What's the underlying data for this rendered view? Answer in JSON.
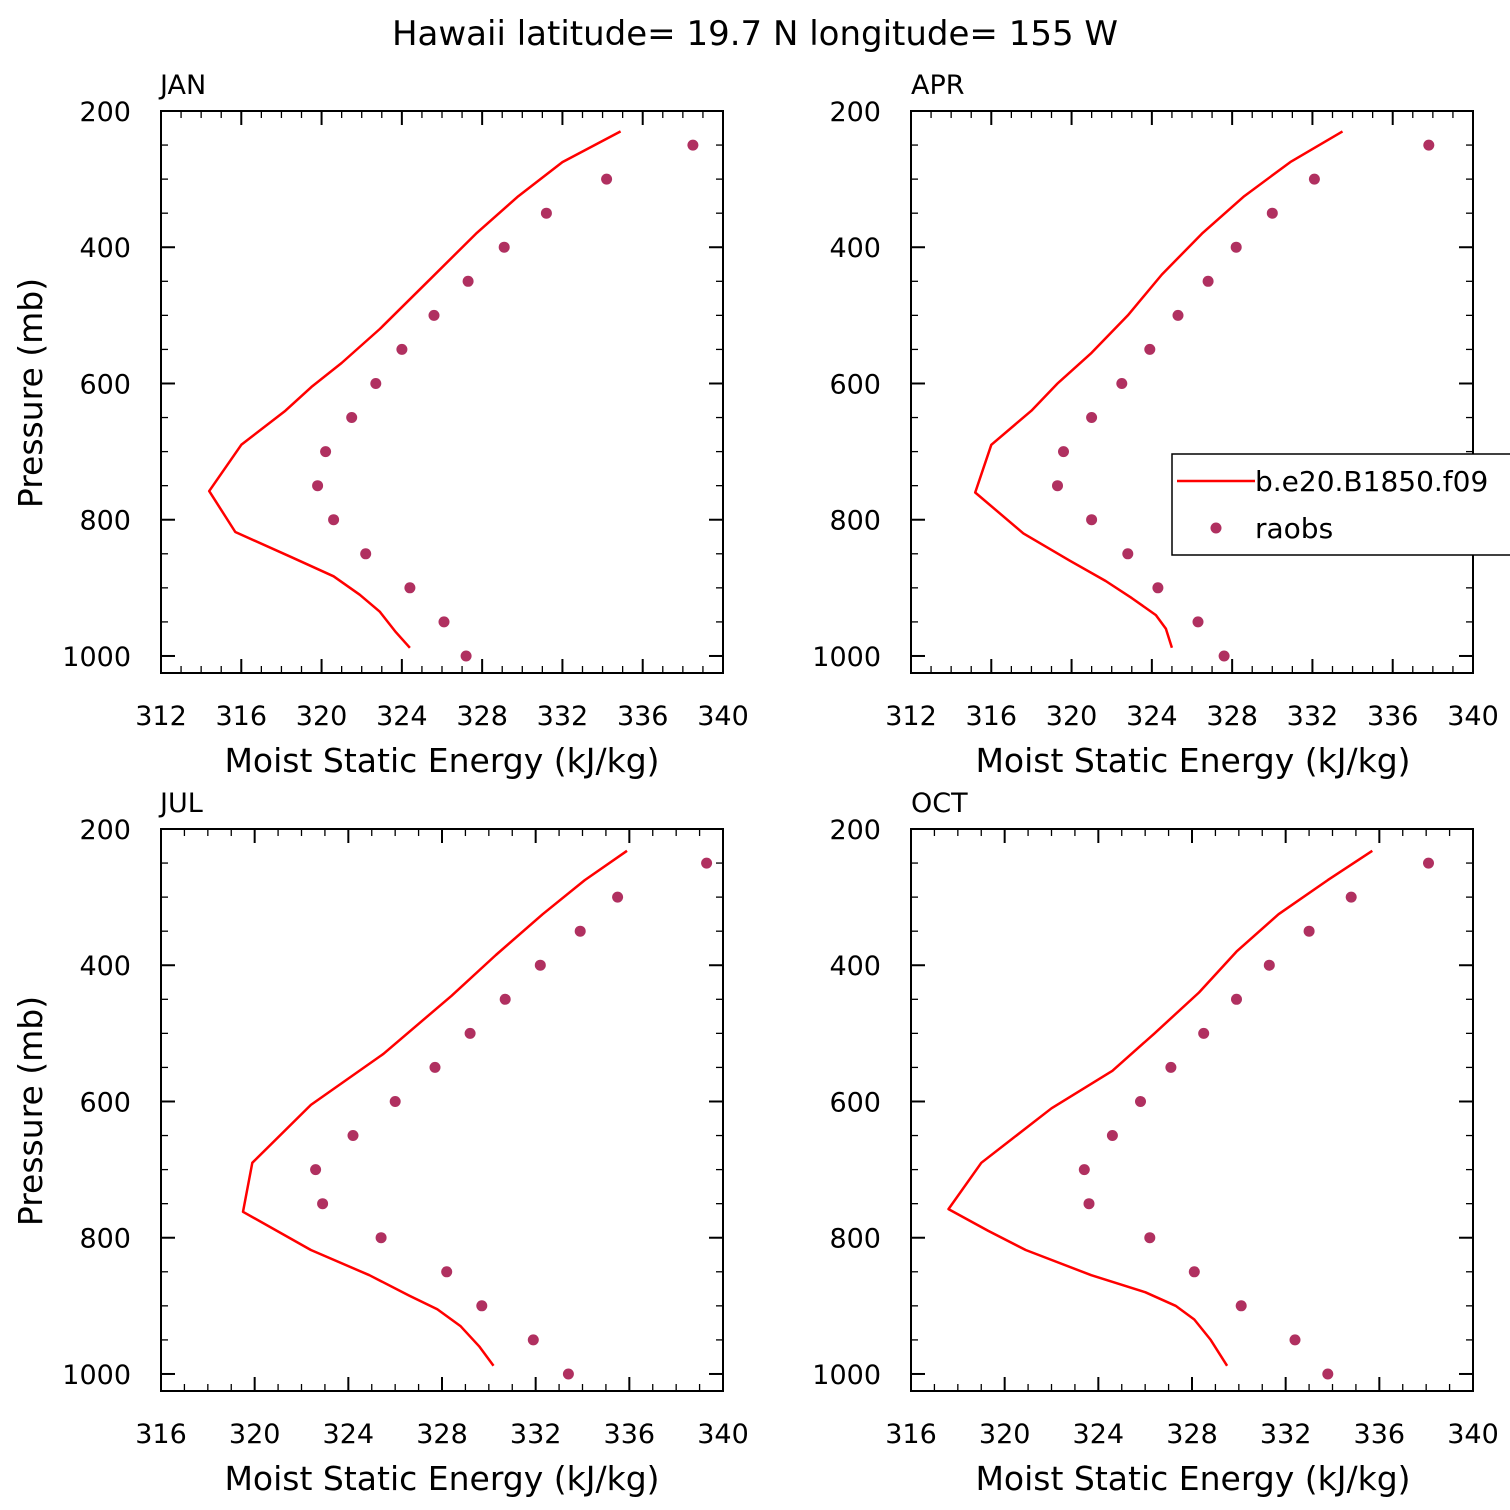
{
  "figure": {
    "title": "Hawaii  latitude= 19.7 N longitude= 155 W"
  },
  "colors": {
    "model_line": "#ff0000",
    "obs_marker": "#b03060",
    "axes": "#000000",
    "background": "#ffffff"
  },
  "legend": {
    "placement": "right of APR panel",
    "entries": [
      {
        "label": "b.e20.B1850.f09",
        "kind": "line"
      },
      {
        "label": "raobs",
        "kind": "marker"
      }
    ]
  },
  "chart_data": [
    {
      "type": "line",
      "panel": "JAN",
      "title": "JAN",
      "xlabel": "Moist Static Energy (kJ/kg)",
      "ylabel": "Pressure (mb)",
      "xlim": [
        312,
        340
      ],
      "ylim": [
        1025,
        200
      ],
      "y_inverted": true,
      "x_ticks": [
        312,
        316,
        320,
        324,
        328,
        332,
        336,
        340
      ],
      "y_ticks": [
        200,
        400,
        600,
        800,
        1000
      ],
      "series": [
        {
          "name": "b.e20.B1850.f09",
          "style": "line",
          "x": [
            334.9,
            332.0,
            329.8,
            327.7,
            325.3,
            322.9,
            321.0,
            319.5,
            318.2,
            316.0,
            314.4,
            315.7,
            318.5,
            320.6,
            321.9,
            322.9,
            323.7,
            324.4
          ],
          "y": [
            230,
            275,
            325,
            380,
            450,
            520,
            570,
            605,
            640,
            690,
            758,
            818,
            855,
            883,
            910,
            935,
            965,
            988
          ]
        },
        {
          "name": "raobs",
          "style": "scatter",
          "x": [
            338.5,
            334.2,
            331.2,
            329.1,
            327.3,
            325.6,
            324.0,
            322.7,
            321.5,
            320.2,
            319.8,
            320.6,
            322.2,
            324.4,
            326.1,
            327.2
          ],
          "y": [
            250,
            300,
            350,
            400,
            450,
            500,
            550,
            600,
            650,
            700,
            750,
            800,
            850,
            900,
            950,
            1000
          ]
        }
      ]
    },
    {
      "type": "line",
      "panel": "APR",
      "title": "APR",
      "xlabel": "Moist Static Energy (kJ/kg)",
      "ylabel": "",
      "xlim": [
        312,
        340
      ],
      "ylim": [
        1025,
        200
      ],
      "y_inverted": true,
      "x_ticks": [
        312,
        316,
        320,
        324,
        328,
        332,
        336,
        340
      ],
      "y_ticks": [
        200,
        400,
        600,
        800,
        1000
      ],
      "series": [
        {
          "name": "b.e20.B1850.f09",
          "style": "line",
          "x": [
            333.5,
            330.9,
            328.6,
            326.5,
            324.5,
            322.8,
            321.0,
            319.3,
            318.0,
            316.0,
            315.2,
            317.6,
            319.9,
            321.7,
            323.0,
            324.2,
            324.7,
            325.0
          ],
          "y": [
            230,
            275,
            325,
            380,
            440,
            500,
            555,
            600,
            640,
            690,
            760,
            820,
            860,
            890,
            915,
            940,
            960,
            988
          ]
        },
        {
          "name": "raobs",
          "style": "scatter",
          "x": [
            337.8,
            332.1,
            330.0,
            328.2,
            326.8,
            325.3,
            323.9,
            322.5,
            321.0,
            319.6,
            319.3,
            321.0,
            322.8,
            324.3,
            326.3,
            327.6
          ],
          "y": [
            250,
            300,
            350,
            400,
            450,
            500,
            550,
            600,
            650,
            700,
            750,
            800,
            850,
            900,
            950,
            1000
          ]
        }
      ]
    },
    {
      "type": "line",
      "panel": "JUL",
      "title": "JUL",
      "xlabel": "Moist Static Energy (kJ/kg)",
      "ylabel": "Pressure (mb)",
      "xlim": [
        316,
        340
      ],
      "ylim": [
        1025,
        200
      ],
      "y_inverted": true,
      "x_ticks": [
        316,
        320,
        324,
        328,
        332,
        336,
        340
      ],
      "y_ticks": [
        200,
        400,
        600,
        800,
        1000
      ],
      "series": [
        {
          "name": "b.e20.B1850.f09",
          "style": "line",
          "x": [
            335.9,
            334.1,
            332.3,
            330.3,
            328.4,
            325.5,
            322.4,
            319.9,
            319.5,
            322.4,
            324.9,
            326.6,
            327.8,
            328.8,
            329.6,
            330.2
          ],
          "y": [
            232,
            275,
            325,
            385,
            445,
            530,
            605,
            690,
            762,
            818,
            855,
            885,
            905,
            930,
            960,
            988
          ]
        },
        {
          "name": "raobs",
          "style": "scatter",
          "x": [
            339.3,
            335.5,
            333.9,
            332.2,
            330.7,
            329.2,
            327.7,
            326.0,
            324.2,
            322.6,
            322.9,
            325.4,
            328.2,
            329.7,
            331.9,
            333.4
          ],
          "y": [
            250,
            300,
            350,
            400,
            450,
            500,
            550,
            600,
            650,
            700,
            750,
            800,
            850,
            900,
            950,
            1000
          ]
        }
      ]
    },
    {
      "type": "line",
      "panel": "OCT",
      "title": "OCT",
      "xlabel": "Moist Static Energy (kJ/kg)",
      "ylabel": "",
      "xlim": [
        316,
        340
      ],
      "ylim": [
        1025,
        200
      ],
      "y_inverted": true,
      "x_ticks": [
        316,
        320,
        324,
        328,
        332,
        336,
        340
      ],
      "y_ticks": [
        200,
        400,
        600,
        800,
        1000
      ],
      "series": [
        {
          "name": "b.e20.B1850.f09",
          "style": "line",
          "x": [
            335.7,
            333.8,
            331.7,
            329.9,
            328.3,
            326.4,
            324.6,
            322.0,
            319.0,
            317.6,
            319.3,
            320.9,
            323.7,
            326.0,
            327.3,
            328.1,
            328.8,
            329.5
          ],
          "y": [
            232,
            275,
            325,
            380,
            440,
            500,
            555,
            610,
            690,
            758,
            790,
            818,
            855,
            880,
            900,
            920,
            950,
            988
          ]
        },
        {
          "name": "raobs",
          "style": "scatter",
          "x": [
            338.1,
            334.8,
            333.0,
            331.3,
            329.9,
            328.5,
            327.1,
            325.8,
            324.6,
            323.4,
            323.6,
            326.2,
            328.1,
            330.1,
            332.4,
            333.8
          ],
          "y": [
            250,
            300,
            350,
            400,
            450,
            500,
            550,
            600,
            650,
            700,
            750,
            800,
            850,
            900,
            950,
            1000
          ]
        }
      ]
    }
  ]
}
